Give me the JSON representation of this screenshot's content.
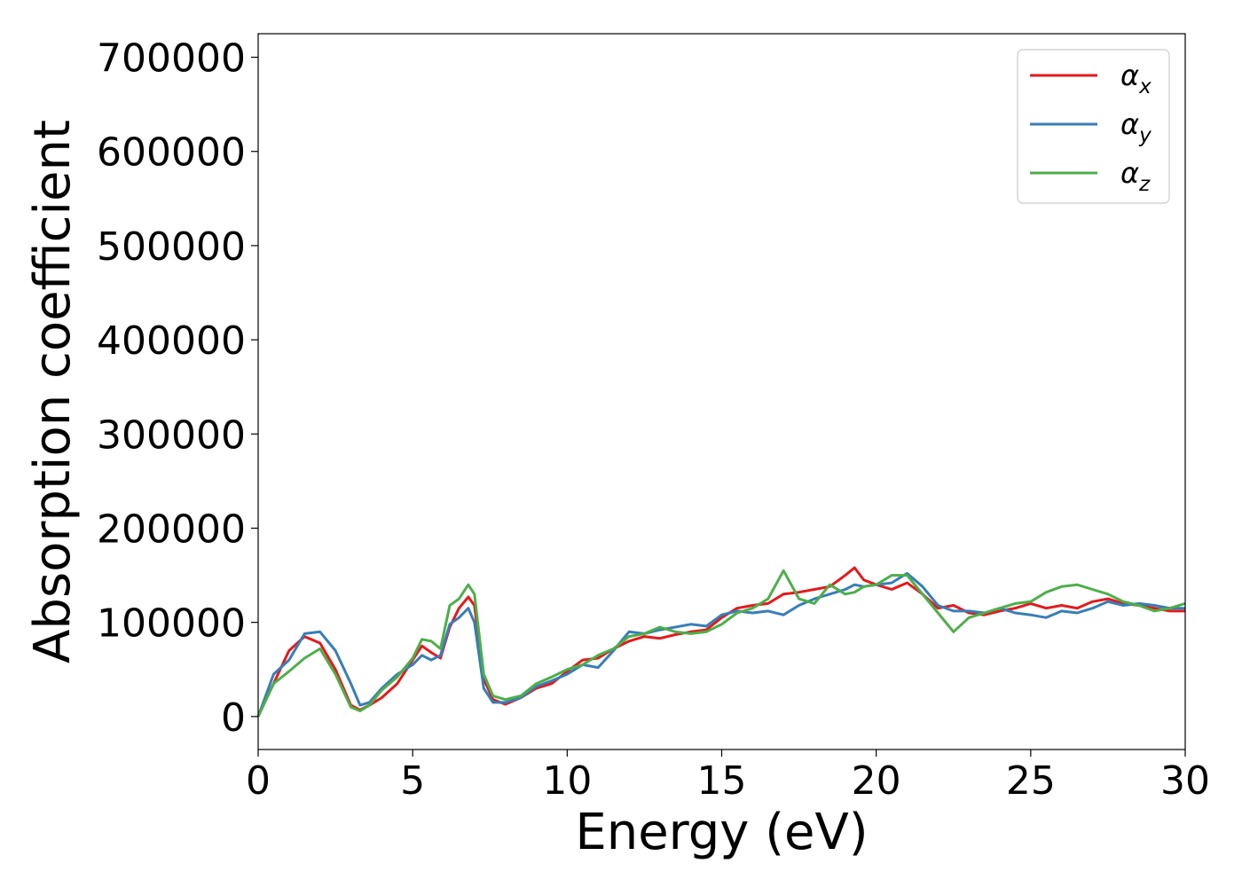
{
  "chart_data": {
    "type": "line",
    "xlabel": "Energy (eV)",
    "ylabel": "Absorption coefficient",
    "xlim": [
      0,
      30
    ],
    "ylim": [
      -35000,
      725000
    ],
    "xticks": [
      0,
      5,
      10,
      15,
      20,
      25,
      30
    ],
    "yticks": [
      0,
      100000,
      200000,
      300000,
      400000,
      500000,
      600000,
      700000
    ],
    "grid": false,
    "legend_position": "top-right",
    "series": [
      {
        "name": "α_x",
        "legend_base": "α",
        "legend_sub": "x",
        "color": "#e41a1c",
        "x": [
          0,
          0.5,
          1.0,
          1.5,
          2.0,
          2.5,
          3.0,
          3.3,
          3.6,
          4.0,
          4.5,
          5.0,
          5.3,
          5.6,
          5.9,
          6.2,
          6.5,
          6.8,
          7.0,
          7.3,
          7.6,
          8.0,
          8.5,
          9.0,
          9.5,
          10.0,
          10.5,
          11.0,
          11.5,
          12.0,
          12.5,
          13.0,
          13.5,
          14.0,
          14.5,
          15.0,
          15.5,
          16.0,
          16.5,
          17.0,
          17.5,
          18.0,
          18.5,
          19.0,
          19.3,
          19.6,
          20.0,
          20.5,
          21.0,
          21.5,
          22.0,
          22.5,
          23.0,
          23.5,
          24.0,
          24.5,
          25.0,
          25.5,
          26.0,
          26.5,
          27.0,
          27.5,
          28.0,
          28.5,
          29.0,
          29.5,
          30.0
        ],
        "y": [
          0,
          35000,
          70000,
          85000,
          78000,
          50000,
          12000,
          7000,
          12000,
          20000,
          35000,
          60000,
          75000,
          68000,
          62000,
          95000,
          115000,
          127000,
          118000,
          40000,
          18000,
          13000,
          20000,
          30000,
          35000,
          48000,
          60000,
          62000,
          72000,
          80000,
          85000,
          83000,
          87000,
          90000,
          92000,
          105000,
          115000,
          118000,
          120000,
          130000,
          132000,
          135000,
          138000,
          150000,
          158000,
          145000,
          140000,
          135000,
          142000,
          130000,
          115000,
          118000,
          110000,
          108000,
          112000,
          115000,
          120000,
          115000,
          118000,
          115000,
          122000,
          125000,
          120000,
          118000,
          115000,
          112000,
          112000
        ]
      },
      {
        "name": "α_y",
        "legend_base": "α",
        "legend_sub": "y",
        "color": "#377eb8",
        "x": [
          0,
          0.5,
          1.0,
          1.5,
          2.0,
          2.5,
          3.0,
          3.3,
          3.6,
          4.0,
          4.5,
          5.0,
          5.3,
          5.6,
          5.9,
          6.2,
          6.5,
          6.8,
          7.0,
          7.3,
          7.6,
          8.0,
          8.5,
          9.0,
          9.5,
          10.0,
          10.5,
          11.0,
          11.5,
          12.0,
          12.5,
          13.0,
          13.5,
          14.0,
          14.5,
          15.0,
          15.5,
          16.0,
          16.5,
          17.0,
          17.5,
          18.0,
          18.5,
          19.0,
          19.3,
          19.6,
          20.0,
          20.5,
          21.0,
          21.5,
          22.0,
          22.5,
          23.0,
          23.5,
          24.0,
          24.5,
          25.0,
          25.5,
          26.0,
          26.5,
          27.0,
          27.5,
          28.0,
          28.5,
          29.0,
          29.5,
          30.0
        ],
        "y": [
          0,
          45000,
          60000,
          88000,
          90000,
          70000,
          35000,
          12000,
          15000,
          30000,
          45000,
          55000,
          65000,
          60000,
          65000,
          98000,
          105000,
          115000,
          100000,
          30000,
          15000,
          15000,
          20000,
          32000,
          38000,
          45000,
          55000,
          52000,
          70000,
          90000,
          88000,
          92000,
          95000,
          98000,
          96000,
          108000,
          112000,
          110000,
          112000,
          108000,
          118000,
          125000,
          130000,
          135000,
          140000,
          138000,
          140000,
          142000,
          152000,
          138000,
          118000,
          112000,
          112000,
          110000,
          115000,
          110000,
          108000,
          105000,
          112000,
          110000,
          115000,
          122000,
          118000,
          120000,
          118000,
          115000,
          115000
        ]
      },
      {
        "name": "α_z",
        "legend_base": "α",
        "legend_sub": "z",
        "color": "#4daf4a",
        "x": [
          0,
          0.5,
          1.0,
          1.5,
          2.0,
          2.5,
          3.0,
          3.3,
          3.6,
          4.0,
          4.5,
          5.0,
          5.3,
          5.6,
          5.9,
          6.2,
          6.5,
          6.8,
          7.0,
          7.3,
          7.6,
          8.0,
          8.5,
          9.0,
          9.5,
          10.0,
          10.5,
          11.0,
          11.5,
          12.0,
          12.5,
          13.0,
          13.5,
          14.0,
          14.5,
          15.0,
          15.5,
          16.0,
          16.5,
          17.0,
          17.5,
          18.0,
          18.5,
          19.0,
          19.3,
          19.6,
          20.0,
          20.5,
          21.0,
          21.5,
          22.0,
          22.5,
          23.0,
          23.5,
          24.0,
          24.5,
          25.0,
          25.5,
          26.0,
          26.5,
          27.0,
          27.5,
          28.0,
          28.5,
          29.0,
          29.5,
          30.0
        ],
        "y": [
          0,
          35000,
          48000,
          62000,
          72000,
          45000,
          10000,
          6000,
          12000,
          28000,
          42000,
          62000,
          82000,
          80000,
          72000,
          118000,
          125000,
          140000,
          130000,
          45000,
          22000,
          18000,
          22000,
          35000,
          42000,
          50000,
          55000,
          65000,
          72000,
          85000,
          88000,
          95000,
          90000,
          88000,
          90000,
          98000,
          110000,
          115000,
          125000,
          155000,
          125000,
          120000,
          140000,
          130000,
          132000,
          138000,
          140000,
          150000,
          150000,
          130000,
          110000,
          90000,
          105000,
          110000,
          115000,
          120000,
          122000,
          132000,
          138000,
          140000,
          135000,
          130000,
          122000,
          118000,
          112000,
          115000,
          120000
        ]
      }
    ]
  }
}
